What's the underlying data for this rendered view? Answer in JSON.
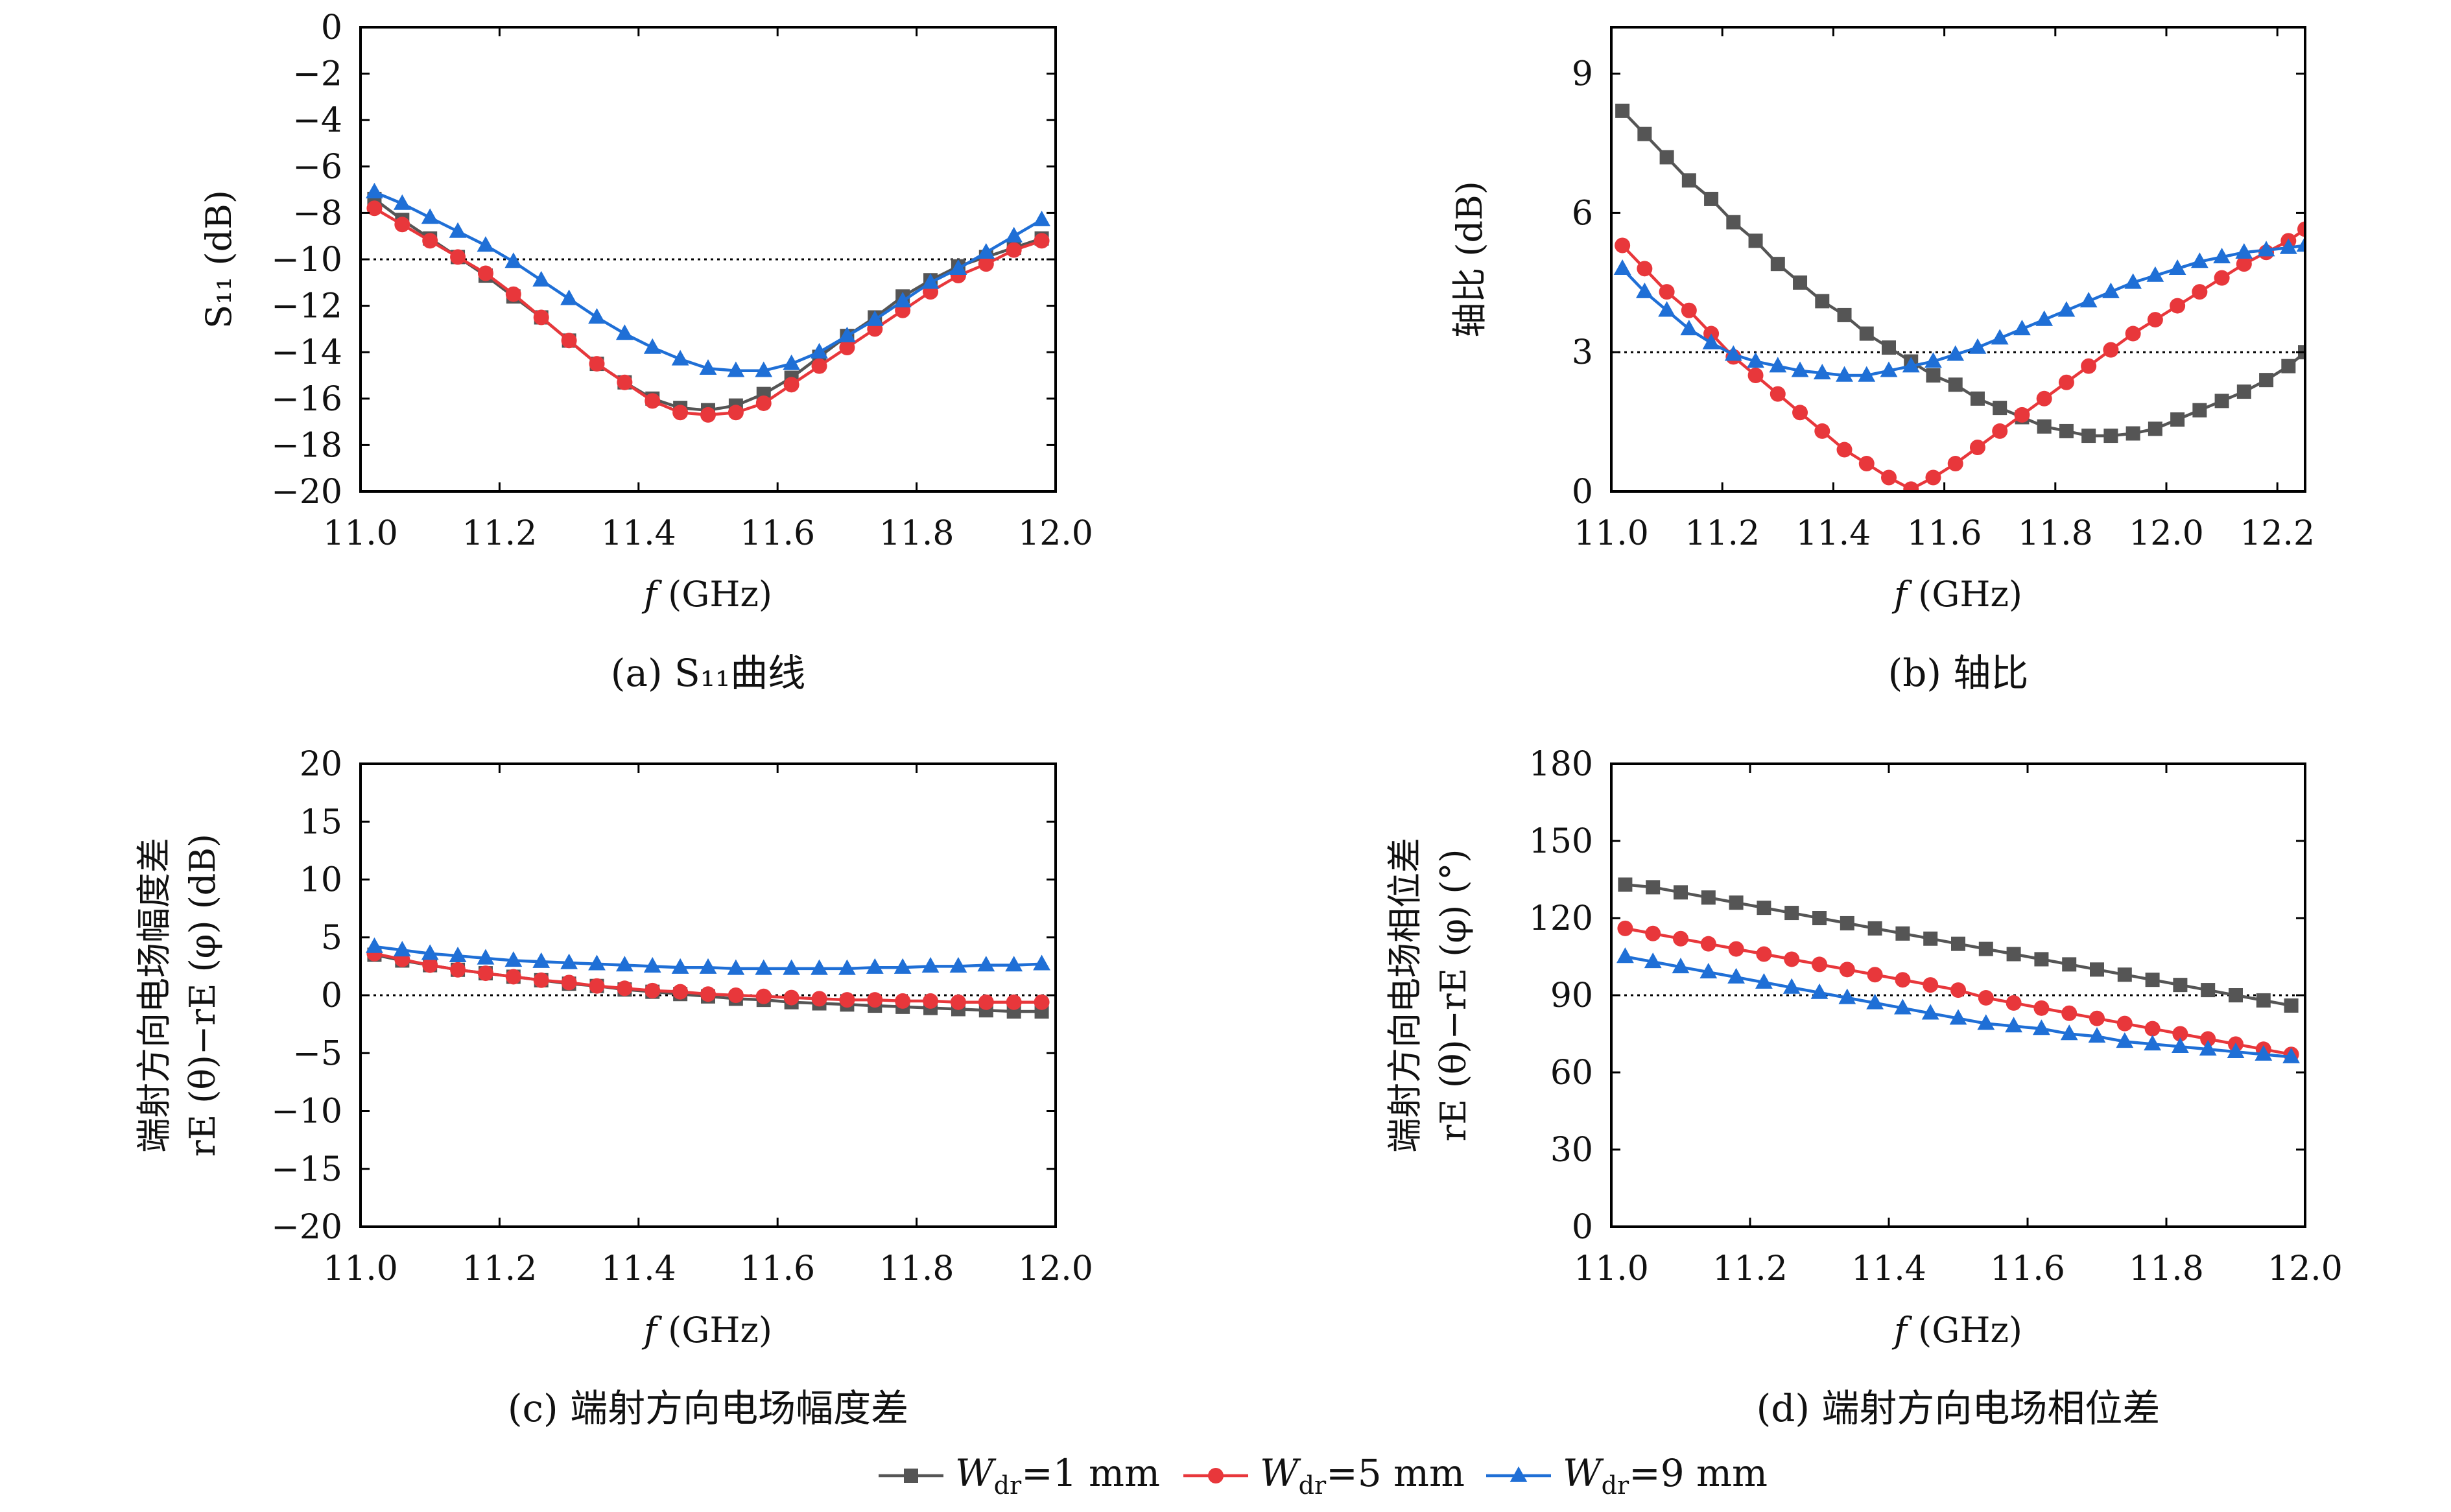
{
  "chart_data": [
    {
      "id": "a",
      "type": "line",
      "caption": "(a) S₁₁曲线",
      "ylabel": "S₁₁ (dB)",
      "xlabel": "f (GHz)",
      "xlim": [
        11.0,
        12.0
      ],
      "ylim": [
        -20,
        0
      ],
      "xticks": [
        "11.0",
        "11.2",
        "11.4",
        "11.6",
        "11.8",
        "12.0"
      ],
      "xtick_values": [
        11.0,
        11.2,
        11.4,
        11.6,
        11.8,
        12.0
      ],
      "yticks": [
        "0",
        "−2",
        "−4",
        "−6",
        "−8",
        "−10",
        "−12",
        "−14",
        "−16",
        "−18",
        "−20"
      ],
      "ytick_values": [
        0,
        -2,
        -4,
        -6,
        -8,
        -10,
        -12,
        -14,
        -16,
        -18,
        -20
      ],
      "reference_line": -10,
      "grid": false,
      "series": [
        {
          "name": "Wdr=1 mm",
          "x": [
            11.02,
            11.06,
            11.1,
            11.14,
            11.18,
            11.22,
            11.26,
            11.3,
            11.34,
            11.38,
            11.42,
            11.46,
            11.5,
            11.54,
            11.58,
            11.62,
            11.66,
            11.7,
            11.74,
            11.78,
            11.82,
            11.86,
            11.9,
            11.94,
            11.98
          ],
          "y": [
            -7.4,
            -8.3,
            -9.1,
            -9.9,
            -10.7,
            -11.6,
            -12.5,
            -13.5,
            -14.5,
            -15.3,
            -16.0,
            -16.4,
            -16.5,
            -16.3,
            -15.8,
            -15.1,
            -14.2,
            -13.3,
            -12.5,
            -11.6,
            -10.9,
            -10.3,
            -9.9,
            -9.5,
            -9.1
          ]
        },
        {
          "name": "Wdr=5 mm",
          "x": [
            11.02,
            11.06,
            11.1,
            11.14,
            11.18,
            11.22,
            11.26,
            11.3,
            11.34,
            11.38,
            11.42,
            11.46,
            11.5,
            11.54,
            11.58,
            11.62,
            11.66,
            11.7,
            11.74,
            11.78,
            11.82,
            11.86,
            11.9,
            11.94,
            11.98
          ],
          "y": [
            -7.8,
            -8.5,
            -9.2,
            -9.9,
            -10.6,
            -11.5,
            -12.5,
            -13.5,
            -14.5,
            -15.3,
            -16.1,
            -16.6,
            -16.7,
            -16.6,
            -16.2,
            -15.4,
            -14.6,
            -13.8,
            -13.0,
            -12.2,
            -11.4,
            -10.7,
            -10.2,
            -9.6,
            -9.2
          ]
        },
        {
          "name": "Wdr=9 mm",
          "x": [
            11.02,
            11.06,
            11.1,
            11.14,
            11.18,
            11.22,
            11.26,
            11.3,
            11.34,
            11.38,
            11.42,
            11.46,
            11.5,
            11.54,
            11.58,
            11.62,
            11.66,
            11.7,
            11.74,
            11.78,
            11.82,
            11.86,
            11.9,
            11.94,
            11.98
          ],
          "y": [
            -7.1,
            -7.6,
            -8.2,
            -8.8,
            -9.4,
            -10.1,
            -10.9,
            -11.7,
            -12.5,
            -13.2,
            -13.8,
            -14.3,
            -14.7,
            -14.8,
            -14.8,
            -14.5,
            -14.0,
            -13.3,
            -12.6,
            -11.8,
            -11.0,
            -10.4,
            -9.7,
            -9.0,
            -8.3
          ]
        }
      ]
    },
    {
      "id": "b",
      "type": "line",
      "caption": "(b) 轴比",
      "ylabel": "轴比 (dB)",
      "xlabel": "f (GHz)",
      "xlim": [
        11.0,
        12.25
      ],
      "ylim": [
        0,
        10
      ],
      "xticks": [
        "11.0",
        "11.2",
        "11.4",
        "11.6",
        "11.8",
        "12.0",
        "12.2"
      ],
      "xtick_values": [
        11.0,
        11.2,
        11.4,
        11.6,
        11.8,
        12.0,
        12.2
      ],
      "yticks": [
        "0",
        "3",
        "6",
        "9"
      ],
      "ytick_values": [
        0,
        3,
        6,
        9
      ],
      "reference_line": 3,
      "grid": false,
      "series": [
        {
          "name": "Wdr=1 mm",
          "x": [
            11.02,
            11.06,
            11.1,
            11.14,
            11.18,
            11.22,
            11.26,
            11.3,
            11.34,
            11.38,
            11.42,
            11.46,
            11.5,
            11.54,
            11.58,
            11.62,
            11.66,
            11.7,
            11.74,
            11.78,
            11.82,
            11.86,
            11.9,
            11.94,
            11.98,
            12.02,
            12.06,
            12.1,
            12.14,
            12.18,
            12.22,
            12.25
          ],
          "y": [
            8.2,
            7.7,
            7.2,
            6.7,
            6.3,
            5.8,
            5.4,
            4.9,
            4.5,
            4.1,
            3.8,
            3.4,
            3.1,
            2.8,
            2.5,
            2.3,
            2.0,
            1.8,
            1.6,
            1.4,
            1.3,
            1.2,
            1.2,
            1.25,
            1.35,
            1.55,
            1.75,
            1.95,
            2.15,
            2.4,
            2.7,
            3.0
          ]
        },
        {
          "name": "Wdr=5 mm",
          "x": [
            11.02,
            11.06,
            11.1,
            11.14,
            11.18,
            11.22,
            11.26,
            11.3,
            11.34,
            11.38,
            11.42,
            11.46,
            11.5,
            11.54,
            11.58,
            11.62,
            11.66,
            11.7,
            11.74,
            11.78,
            11.82,
            11.86,
            11.9,
            11.94,
            11.98,
            12.02,
            12.06,
            12.1,
            12.14,
            12.18,
            12.22,
            12.25
          ],
          "y": [
            5.3,
            4.8,
            4.3,
            3.9,
            3.4,
            2.9,
            2.5,
            2.1,
            1.7,
            1.3,
            0.9,
            0.6,
            0.3,
            0.05,
            0.3,
            0.6,
            0.95,
            1.3,
            1.65,
            2.0,
            2.35,
            2.7,
            3.05,
            3.4,
            3.7,
            4.0,
            4.3,
            4.6,
            4.9,
            5.15,
            5.4,
            5.65
          ]
        },
        {
          "name": "Wdr=9 mm",
          "x": [
            11.02,
            11.06,
            11.1,
            11.14,
            11.18,
            11.22,
            11.26,
            11.3,
            11.34,
            11.38,
            11.42,
            11.46,
            11.5,
            11.54,
            11.58,
            11.62,
            11.66,
            11.7,
            11.74,
            11.78,
            11.82,
            11.86,
            11.9,
            11.94,
            11.98,
            12.02,
            12.06,
            12.1,
            12.14,
            12.18,
            12.22,
            12.25
          ],
          "y": [
            4.8,
            4.3,
            3.9,
            3.5,
            3.2,
            2.95,
            2.8,
            2.7,
            2.6,
            2.55,
            2.5,
            2.5,
            2.6,
            2.7,
            2.8,
            2.95,
            3.1,
            3.3,
            3.5,
            3.7,
            3.9,
            4.1,
            4.3,
            4.5,
            4.65,
            4.8,
            4.95,
            5.05,
            5.15,
            5.2,
            5.25,
            5.3
          ]
        }
      ]
    },
    {
      "id": "c",
      "type": "line",
      "caption": "(c) 端射方向电场幅度差",
      "ylabel_line1": "端射方向电场幅度差",
      "ylabel_line2": "rE (θ)−rE (φ) (dB)",
      "xlabel": "f (GHz)",
      "xlim": [
        11.0,
        12.0
      ],
      "ylim": [
        -20,
        20
      ],
      "xticks": [
        "11.0",
        "11.2",
        "11.4",
        "11.6",
        "11.8",
        "12.0"
      ],
      "xtick_values": [
        11.0,
        11.2,
        11.4,
        11.6,
        11.8,
        12.0
      ],
      "yticks": [
        "20",
        "15",
        "10",
        "5",
        "0",
        "−5",
        "−10",
        "−15",
        "−20"
      ],
      "ytick_values": [
        20,
        15,
        10,
        5,
        0,
        -5,
        -10,
        -15,
        -20
      ],
      "reference_line": 0,
      "grid": false,
      "series": [
        {
          "name": "Wdr=1 mm",
          "x": [
            11.02,
            11.06,
            11.1,
            11.14,
            11.18,
            11.22,
            11.26,
            11.3,
            11.34,
            11.38,
            11.42,
            11.46,
            11.5,
            11.54,
            11.58,
            11.62,
            11.66,
            11.7,
            11.74,
            11.78,
            11.82,
            11.86,
            11.9,
            11.94,
            11.98
          ],
          "y": [
            3.5,
            3.0,
            2.6,
            2.2,
            1.9,
            1.6,
            1.3,
            1.0,
            0.8,
            0.5,
            0.3,
            0.1,
            -0.1,
            -0.3,
            -0.4,
            -0.6,
            -0.7,
            -0.8,
            -0.9,
            -1.0,
            -1.1,
            -1.2,
            -1.3,
            -1.4,
            -1.4
          ]
        },
        {
          "name": "Wdr=5 mm",
          "x": [
            11.02,
            11.06,
            11.1,
            11.14,
            11.18,
            11.22,
            11.26,
            11.3,
            11.34,
            11.38,
            11.42,
            11.46,
            11.5,
            11.54,
            11.58,
            11.62,
            11.66,
            11.7,
            11.74,
            11.78,
            11.82,
            11.86,
            11.9,
            11.94,
            11.98
          ],
          "y": [
            3.6,
            3.1,
            2.6,
            2.2,
            1.9,
            1.6,
            1.3,
            1.1,
            0.8,
            0.6,
            0.4,
            0.3,
            0.1,
            0.0,
            -0.1,
            -0.2,
            -0.3,
            -0.4,
            -0.4,
            -0.5,
            -0.5,
            -0.6,
            -0.6,
            -0.6,
            -0.6
          ]
        },
        {
          "name": "Wdr=9 mm",
          "x": [
            11.02,
            11.06,
            11.1,
            11.14,
            11.18,
            11.22,
            11.26,
            11.3,
            11.34,
            11.38,
            11.42,
            11.46,
            11.5,
            11.54,
            11.58,
            11.62,
            11.66,
            11.7,
            11.74,
            11.78,
            11.82,
            11.86,
            11.9,
            11.94,
            11.98
          ],
          "y": [
            4.2,
            3.9,
            3.6,
            3.4,
            3.2,
            3.0,
            2.9,
            2.8,
            2.7,
            2.6,
            2.5,
            2.4,
            2.4,
            2.3,
            2.3,
            2.3,
            2.3,
            2.3,
            2.4,
            2.4,
            2.5,
            2.5,
            2.6,
            2.6,
            2.7
          ]
        }
      ]
    },
    {
      "id": "d",
      "type": "line",
      "caption": "(d) 端射方向电场相位差",
      "ylabel_line1": "端射方向电场相位差",
      "ylabel_line2": "rE (θ)−rE (φ) (°)",
      "xlabel": "f (GHz)",
      "xlim": [
        11.0,
        12.0
      ],
      "ylim": [
        0,
        180
      ],
      "xticks": [
        "11.0",
        "11.2",
        "11.4",
        "11.6",
        "11.8",
        "12.0"
      ],
      "xtick_values": [
        11.0,
        11.2,
        11.4,
        11.6,
        11.8,
        12.0
      ],
      "yticks": [
        "180",
        "150",
        "120",
        "90",
        "60",
        "30",
        "0"
      ],
      "ytick_values": [
        180,
        150,
        120,
        90,
        60,
        30,
        0
      ],
      "reference_line": 90,
      "grid": false,
      "series": [
        {
          "name": "Wdr=1 mm",
          "x": [
            11.02,
            11.06,
            11.1,
            11.14,
            11.18,
            11.22,
            11.26,
            11.3,
            11.34,
            11.38,
            11.42,
            11.46,
            11.5,
            11.54,
            11.58,
            11.62,
            11.66,
            11.7,
            11.74,
            11.78,
            11.82,
            11.86,
            11.9,
            11.94,
            11.98
          ],
          "y": [
            133,
            132,
            130,
            128,
            126,
            124,
            122,
            120,
            118,
            116,
            114,
            112,
            110,
            108,
            106,
            104,
            102,
            100,
            98,
            96,
            94,
            92,
            90,
            88,
            86
          ]
        },
        {
          "name": "Wdr=5 mm",
          "x": [
            11.02,
            11.06,
            11.1,
            11.14,
            11.18,
            11.22,
            11.26,
            11.3,
            11.34,
            11.38,
            11.42,
            11.46,
            11.5,
            11.54,
            11.58,
            11.62,
            11.66,
            11.7,
            11.74,
            11.78,
            11.82,
            11.86,
            11.9,
            11.94,
            11.98
          ],
          "y": [
            116,
            114,
            112,
            110,
            108,
            106,
            104,
            102,
            100,
            98,
            96,
            94,
            92,
            89,
            87,
            85,
            83,
            81,
            79,
            77,
            75,
            73,
            71,
            69,
            67
          ]
        },
        {
          "name": "Wdr=9 mm",
          "x": [
            11.02,
            11.06,
            11.1,
            11.14,
            11.18,
            11.22,
            11.26,
            11.3,
            11.34,
            11.38,
            11.42,
            11.46,
            11.5,
            11.54,
            11.58,
            11.62,
            11.66,
            11.7,
            11.74,
            11.78,
            11.82,
            11.86,
            11.9,
            11.94,
            11.98
          ],
          "y": [
            105,
            103,
            101,
            99,
            97,
            95,
            93,
            91,
            89,
            87,
            85,
            83,
            81,
            79,
            78,
            77,
            75,
            74,
            72,
            71,
            70,
            69,
            68,
            67,
            66
          ]
        }
      ]
    }
  ],
  "legend": {
    "placement": "bottom-center",
    "items": [
      {
        "prefix": "W",
        "sub": "dr",
        "rest": "=1 mm",
        "color": "#555555",
        "marker": "square"
      },
      {
        "prefix": "W",
        "sub": "dr",
        "rest": "=5 mm",
        "color": "#e8373b",
        "marker": "circle"
      },
      {
        "prefix": "W",
        "sub": "dr",
        "rest": "=9 mm",
        "color": "#1f6fd6",
        "marker": "triangle"
      }
    ]
  },
  "colors": {
    "Wdr=1 mm": "#555555",
    "Wdr=5 mm": "#e8373b",
    "Wdr=9 mm": "#1f6fd6"
  }
}
